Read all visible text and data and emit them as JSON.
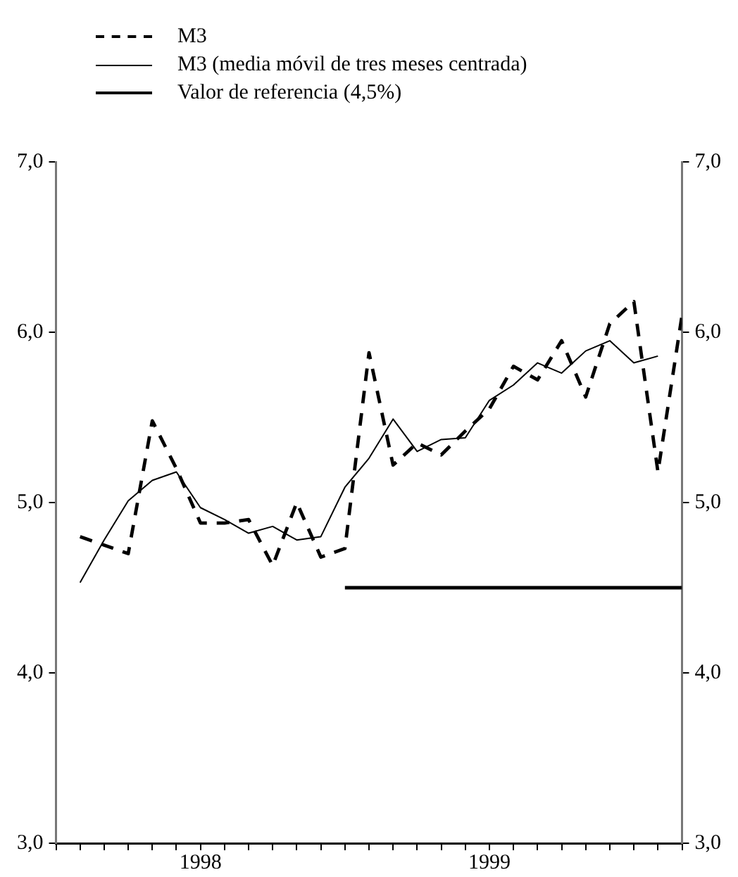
{
  "chart_data": {
    "type": "line",
    "legend": "top left",
    "xlim": [
      "1998-01",
      "2000-03"
    ],
    "xticks": [
      {
        "value": "1998-01",
        "label": null
      },
      {
        "value": "1998-02",
        "label": null
      },
      {
        "value": "1998-03",
        "label": null
      },
      {
        "value": "1998-04",
        "label": null
      },
      {
        "value": "1998-05",
        "label": null
      },
      {
        "value": "1998-06",
        "label": null
      },
      {
        "value": "1998-07",
        "label": "1998"
      },
      {
        "value": "1998-08",
        "label": null
      },
      {
        "value": "1998-09",
        "label": null
      },
      {
        "value": "1998-10",
        "label": null
      },
      {
        "value": "1998-11",
        "label": null
      },
      {
        "value": "1998-12",
        "label": null
      },
      {
        "value": "1999-01",
        "label": null
      },
      {
        "value": "1999-02",
        "label": null
      },
      {
        "value": "1999-03",
        "label": null
      },
      {
        "value": "1999-04",
        "label": null
      },
      {
        "value": "1999-05",
        "label": null
      },
      {
        "value": "1999-06",
        "label": null
      },
      {
        "value": "1999-07",
        "label": "1999"
      },
      {
        "value": "1999-08",
        "label": null
      },
      {
        "value": "1999-09",
        "label": null
      },
      {
        "value": "1999-10",
        "label": null
      },
      {
        "value": "1999-11",
        "label": null
      },
      {
        "value": "1999-12",
        "label": null
      },
      {
        "value": "2000-01",
        "label": null
      },
      {
        "value": "2000-02",
        "label": null
      },
      {
        "value": "2000-03",
        "label": null
      }
    ],
    "ylim": [
      3,
      7
    ],
    "yticks": [
      {
        "value": 3,
        "label": "3,0"
      },
      {
        "value": 4,
        "label": "4,0"
      },
      {
        "value": 5,
        "label": "5,0"
      },
      {
        "value": 6,
        "label": "6,0"
      },
      {
        "value": 7,
        "label": "7,0"
      }
    ],
    "y2lim": [
      3,
      7
    ],
    "y2ticks": [
      {
        "value": 3,
        "label": "3,0"
      },
      {
        "value": 4,
        "label": "4,0"
      },
      {
        "value": 5,
        "label": "5,0"
      },
      {
        "value": 6,
        "label": "6,0"
      },
      {
        "value": 7,
        "label": "7,0"
      }
    ],
    "series": [
      {
        "name": "M3",
        "color": "#000000",
        "line_style": "dashed",
        "x": [
          "1998-02",
          "1998-03",
          "1998-04",
          "1998-05",
          "1998-06",
          "1998-07",
          "1998-08",
          "1998-09",
          "1998-10",
          "1998-11",
          "1998-12",
          "1999-01",
          "1999-02",
          "1999-03",
          "1999-04",
          "1999-05",
          "1999-06",
          "1999-07",
          "1999-08",
          "1999-09",
          "1999-10",
          "1999-11",
          "1999-12",
          "2000-01",
          "2000-02",
          "2000-03"
        ],
        "values": [
          4.8,
          4.75,
          4.7,
          5.48,
          5.2,
          4.88,
          4.88,
          4.9,
          4.63,
          5.0,
          4.68,
          4.73,
          5.88,
          5.22,
          5.35,
          5.28,
          5.42,
          5.55,
          5.8,
          5.72,
          5.95,
          5.62,
          6.05,
          6.18,
          5.18,
          6.1
        ]
      },
      {
        "name": "M3 (media móvil de tres meses centrada)",
        "color": "#000000",
        "line_style": "solid",
        "x": [
          "1998-02",
          "1998-03",
          "1998-04",
          "1998-05",
          "1998-06",
          "1998-07",
          "1998-08",
          "1998-09",
          "1998-10",
          "1998-11",
          "1998-12",
          "1999-01",
          "1999-02",
          "1999-03",
          "1999-04",
          "1999-05",
          "1999-06",
          "1999-07",
          "1999-08",
          "1999-09",
          "1999-10",
          "1999-11",
          "1999-12",
          "2000-01",
          "2000-02"
        ],
        "values": [
          4.53,
          4.78,
          5.01,
          5.13,
          5.18,
          4.97,
          4.9,
          4.82,
          4.86,
          4.78,
          4.8,
          5.09,
          5.26,
          5.49,
          5.3,
          5.37,
          5.38,
          5.6,
          5.69,
          5.82,
          5.76,
          5.89,
          5.95,
          5.82,
          5.86
        ]
      },
      {
        "name": "Valor de referencia (4,5%)",
        "color": "#000000",
        "line_style": "solid",
        "x": [
          "1999-01",
          "2000-03"
        ],
        "values": [
          4.5,
          4.5
        ]
      }
    ]
  }
}
